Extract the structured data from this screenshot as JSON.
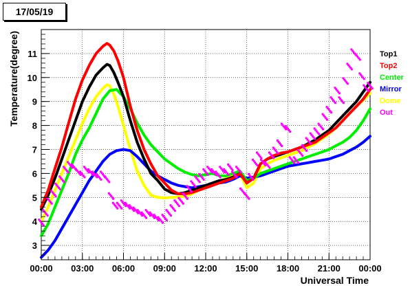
{
  "date_label": "17/05/19",
  "chart_data": {
    "type": "line",
    "xlabel": "Universal Time",
    "ylabel": "Temperature(degree)",
    "xlim": [
      0,
      24
    ],
    "ylim": [
      2.4,
      12.0
    ],
    "x_ticks": [
      {
        "value": 0,
        "label": "00:00"
      },
      {
        "value": 3,
        "label": "03:00"
      },
      {
        "value": 6,
        "label": "06:00"
      },
      {
        "value": 9,
        "label": "09:00"
      },
      {
        "value": 12,
        "label": "12:00"
      },
      {
        "value": 15,
        "label": "15:00"
      },
      {
        "value": 18,
        "label": "18:00"
      },
      {
        "value": 21,
        "label": "21:00"
      },
      {
        "value": 24,
        "label": "00:00"
      }
    ],
    "y_ticks": [
      3,
      4,
      5,
      6,
      7,
      8,
      9,
      10,
      11
    ],
    "grid": true,
    "legend_position": "right",
    "series": [
      {
        "name": "Top1",
        "color": "#000000",
        "style": "thick",
        "x": [
          0,
          0.5,
          1,
          1.5,
          2,
          2.5,
          3,
          3.5,
          4,
          4.5,
          4.8,
          5,
          5.3,
          5.6,
          6,
          6.5,
          7,
          7.5,
          8,
          8.5,
          9,
          9.5,
          10,
          10.5,
          11,
          11.5,
          12,
          12.5,
          13,
          13.5,
          14,
          14.5,
          15,
          15.5,
          16,
          16.5,
          17,
          17.5,
          18,
          18.5,
          19,
          19.5,
          20,
          20.5,
          21,
          21.5,
          22,
          22.5,
          23,
          23.5,
          24
        ],
        "y": [
          4.5,
          5.1,
          5.8,
          6.6,
          7.4,
          8.2,
          9.0,
          9.6,
          10.1,
          10.4,
          10.55,
          10.5,
          10.2,
          9.8,
          9.2,
          8.2,
          7.3,
          6.6,
          6.0,
          5.7,
          5.35,
          5.2,
          5.15,
          5.2,
          5.3,
          5.4,
          5.5,
          5.6,
          5.7,
          5.75,
          5.85,
          6.0,
          5.6,
          5.8,
          6.4,
          6.6,
          6.7,
          6.8,
          6.9,
          7.0,
          7.1,
          7.25,
          7.4,
          7.6,
          7.8,
          8.1,
          8.4,
          8.7,
          9.0,
          9.4,
          9.8
        ]
      },
      {
        "name": "Top2",
        "color": "#ff0000",
        "style": "thick",
        "x": [
          0,
          0.5,
          1,
          1.5,
          2,
          2.5,
          3,
          3.5,
          4,
          4.5,
          4.8,
          5,
          5.3,
          5.6,
          6,
          6.5,
          7,
          7.5,
          8,
          8.5,
          9,
          9.5,
          10,
          10.5,
          11,
          11.5,
          12,
          12.5,
          13,
          13.5,
          14,
          14.5,
          15,
          15.5,
          16,
          16.5,
          17,
          17.5,
          18,
          18.5,
          19,
          19.5,
          20,
          20.5,
          21,
          21.5,
          22,
          22.5,
          23,
          23.5,
          24
        ],
        "y": [
          4.6,
          5.3,
          6.2,
          7.1,
          8.1,
          9.1,
          9.9,
          10.5,
          11.0,
          11.3,
          11.42,
          11.35,
          11.1,
          10.7,
          10.0,
          8.8,
          7.8,
          7.0,
          6.4,
          5.9,
          5.6,
          5.3,
          5.15,
          5.15,
          5.2,
          5.3,
          5.4,
          5.5,
          5.6,
          5.7,
          5.8,
          6.0,
          5.6,
          5.8,
          6.4,
          6.6,
          6.75,
          6.85,
          6.9,
          7.0,
          7.1,
          7.2,
          7.3,
          7.5,
          7.7,
          7.9,
          8.2,
          8.5,
          8.8,
          9.1,
          9.5
        ]
      },
      {
        "name": "Center",
        "color": "#00ee00",
        "style": "thick",
        "x": [
          0,
          0.5,
          1,
          1.5,
          2,
          2.5,
          3,
          3.5,
          4,
          4.5,
          5,
          5.5,
          6,
          6.5,
          7,
          7.5,
          8,
          8.5,
          9,
          9.5,
          10,
          10.5,
          11,
          11.5,
          12,
          12.5,
          13,
          13.5,
          14,
          14.5,
          15,
          15.5,
          16,
          16.5,
          17,
          17.5,
          18,
          18.5,
          19,
          19.5,
          20,
          20.5,
          21,
          21.5,
          22,
          22.5,
          23,
          23.5,
          24
        ],
        "y": [
          3.4,
          3.9,
          4.6,
          5.3,
          6.0,
          6.8,
          7.4,
          7.9,
          8.5,
          9.1,
          9.45,
          9.5,
          9.2,
          8.7,
          8.1,
          7.6,
          7.2,
          6.9,
          6.6,
          6.4,
          6.2,
          6.05,
          5.95,
          5.9,
          5.95,
          6.0,
          5.9,
          5.9,
          6.0,
          6.1,
          5.7,
          5.8,
          6.0,
          6.1,
          6.2,
          6.3,
          6.4,
          6.5,
          6.6,
          6.7,
          6.8,
          6.9,
          7.0,
          7.15,
          7.3,
          7.5,
          7.8,
          8.2,
          8.7
        ]
      },
      {
        "name": "Mirror",
        "color": "#0000ff",
        "style": "thick",
        "x": [
          0,
          0.5,
          1,
          1.5,
          2,
          2.5,
          3,
          3.5,
          4,
          4.5,
          5,
          5.5,
          6,
          6.5,
          7,
          7.5,
          8,
          8.5,
          9,
          9.5,
          10,
          10.5,
          11,
          11.5,
          12,
          12.5,
          13,
          13.5,
          14,
          14.5,
          15,
          15.5,
          16,
          16.5,
          17,
          17.5,
          18,
          18.5,
          19,
          19.5,
          20,
          20.5,
          21,
          21.5,
          22,
          22.5,
          23,
          23.5,
          24
        ],
        "y": [
          2.5,
          2.8,
          3.2,
          3.7,
          4.2,
          4.7,
          5.2,
          5.7,
          6.1,
          6.5,
          6.8,
          6.95,
          7.0,
          6.95,
          6.7,
          6.4,
          6.1,
          5.9,
          5.75,
          5.6,
          5.5,
          5.45,
          5.4,
          5.45,
          5.5,
          5.55,
          5.6,
          5.65,
          5.75,
          5.9,
          5.8,
          5.85,
          5.9,
          6.0,
          6.1,
          6.2,
          6.3,
          6.35,
          6.4,
          6.45,
          6.5,
          6.55,
          6.6,
          6.7,
          6.8,
          6.95,
          7.1,
          7.3,
          7.55
        ]
      },
      {
        "name": "Dome",
        "color": "#ffff00",
        "style": "thick",
        "x": [
          0,
          0.5,
          1,
          1.5,
          2,
          2.5,
          3,
          3.5,
          4,
          4.5,
          4.8,
          5,
          5.3,
          5.6,
          6,
          6.5,
          7,
          7.5,
          8,
          8.5,
          9,
          9.5,
          10,
          10.5,
          11,
          11.5,
          12,
          12.5,
          13,
          13.5,
          14,
          14.5,
          15,
          15.5,
          16,
          16.5,
          17,
          17.5,
          18,
          18.5,
          19,
          19.5,
          20,
          20.5,
          21,
          21.5,
          22,
          22.5,
          23,
          23.5,
          24
        ],
        "y": [
          4.0,
          4.6,
          5.3,
          6.0,
          6.7,
          7.4,
          8.1,
          8.7,
          9.2,
          9.55,
          9.7,
          9.65,
          9.3,
          8.8,
          8.0,
          7.0,
          6.1,
          5.5,
          5.1,
          5.0,
          4.98,
          5.0,
          5.02,
          5.05,
          5.15,
          5.3,
          5.45,
          5.55,
          5.65,
          5.8,
          5.9,
          6.0,
          5.4,
          5.6,
          6.2,
          6.4,
          6.55,
          6.65,
          6.75,
          6.85,
          6.95,
          7.1,
          7.25,
          7.45,
          7.65,
          7.9,
          8.2,
          8.5,
          8.8,
          9.05,
          9.35
        ]
      },
      {
        "name": "Out",
        "color": "#ff00ff",
        "style": "scatter",
        "x": [
          0,
          0.3,
          0.6,
          0.9,
          1.2,
          1.5,
          1.8,
          2.1,
          2.4,
          2.7,
          3.0,
          3.3,
          3.6,
          3.9,
          4.2,
          4.5,
          4.8,
          5.1,
          5.4,
          5.7,
          6.0,
          6.3,
          6.6,
          6.9,
          7.2,
          7.5,
          7.8,
          8.1,
          8.4,
          8.7,
          9.0,
          9.3,
          9.6,
          9.9,
          10.2,
          10.5,
          10.8,
          11.1,
          11.4,
          11.7,
          12.0,
          12.3,
          12.6,
          12.9,
          13.2,
          13.5,
          13.8,
          14.1,
          14.4,
          14.7,
          15.0,
          15.3,
          15.6,
          15.9,
          16.2,
          16.5,
          16.8,
          17.1,
          17.4,
          17.7,
          18.0,
          18.3,
          18.6,
          18.9,
          19.2,
          19.5,
          19.8,
          20.1,
          20.4,
          20.7,
          21.0,
          21.3,
          21.6,
          21.9,
          22.2,
          22.5,
          22.8,
          23.1,
          23.4,
          23.7,
          24.0
        ],
        "y": [
          3.9,
          4.3,
          4.8,
          5.1,
          5.4,
          5.7,
          6.1,
          6.3,
          6.2,
          6.0,
          5.9,
          6.1,
          6.0,
          5.9,
          5.8,
          5.9,
          5.7,
          5.0,
          4.6,
          4.6,
          4.7,
          4.6,
          4.5,
          4.4,
          4.3,
          4.2,
          4.3,
          4.2,
          4.1,
          4.0,
          4.1,
          4.3,
          4.5,
          4.7,
          4.8,
          5.0,
          5.3,
          5.5,
          5.7,
          5.8,
          6.0,
          6.1,
          6.0,
          5.9,
          6.1,
          6.0,
          6.2,
          5.9,
          6.1,
          5.2,
          5.0,
          5.8,
          6.4,
          6.7,
          6.4,
          6.3,
          6.7,
          6.9,
          7.2,
          7.9,
          7.8,
          6.5,
          6.5,
          6.8,
          7.0,
          7.3,
          7.5,
          7.7,
          7.9,
          8.3,
          8.6,
          9.0,
          9.4,
          9.0,
          9.8,
          10.4,
          11.0,
          10.8,
          10.0,
          9.5,
          9.6
        ]
      }
    ]
  }
}
